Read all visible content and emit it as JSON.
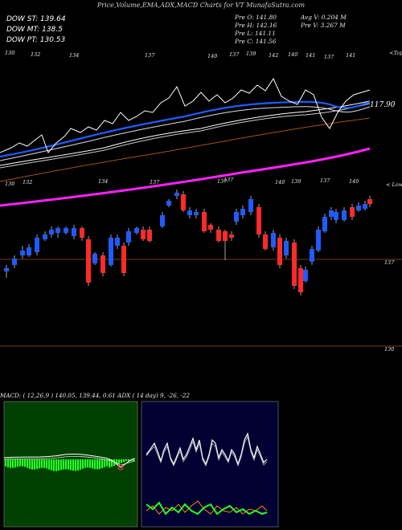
{
  "title": "Price,Volume,EMA,ADX,MACD Charts for VT MunafaSutra.com",
  "legend": [
    {
      "label": "DOW ST: 139.64",
      "color": "#1f5cff"
    },
    {
      "label": "DOW MT: 138.5",
      "color": "#ffffff"
    },
    {
      "label": "DOW PT: 130.53",
      "color": "#ff22ff"
    }
  ],
  "ohlc": {
    "open": "Pre  O: 141.80",
    "high": "Pre  H: 142.16",
    "low": "Pre  L: 141.11",
    "close": "Pre  C: 141.56"
  },
  "volume": {
    "avg": "Avg V: 0.204  M",
    "pre": "Pre  V: 3.267 M"
  },
  "top_labels": [
    "130",
    "132",
    "134",
    "137",
    "140",
    "137",
    "139",
    "142",
    "140",
    "141",
    "137",
    "141"
  ],
  "mid_labels": [
    "130",
    "132",
    "134",
    "137",
    "137",
    "137",
    "140",
    "139",
    "137",
    "140"
  ],
  "top_caption": "<Top",
  "mid_caption": "< Lowes",
  "price_label_main": "117.90",
  "right_axis_ticks": [
    "137",
    "130"
  ],
  "macd_text": "MACD:                     ( 12,26,9 ) 140.05,  139.44,  0.61 ADX             ( 14  day) 9,  -26,  -22",
  "colors": {
    "st": "#1f5cff",
    "mt": "#ffffff",
    "pt": "#ff22ff",
    "up": "#1f5cff",
    "down": "#ff2a2a",
    "macd_bar": "#22ff22",
    "brown": "#a0521a"
  },
  "chart_data": [
    {
      "type": "candlestick",
      "title": "Price",
      "series": [
        {
          "name": "DOW ST",
          "value": 139.64
        },
        {
          "name": "DOW MT",
          "value": 138.5
        },
        {
          "name": "DOW PT",
          "value": 130.53
        }
      ],
      "last": {
        "open": 141.8,
        "high": 142.16,
        "low": 141.11,
        "close": 141.56
      },
      "price_label": 117.9
    },
    {
      "type": "bar",
      "title": "MACD",
      "params": "12,26,9",
      "values": [
        140.05,
        139.44,
        0.61
      ]
    },
    {
      "type": "line",
      "title": "ADX",
      "params": "14 day",
      "values": [
        9,
        -26,
        -22
      ]
    }
  ]
}
